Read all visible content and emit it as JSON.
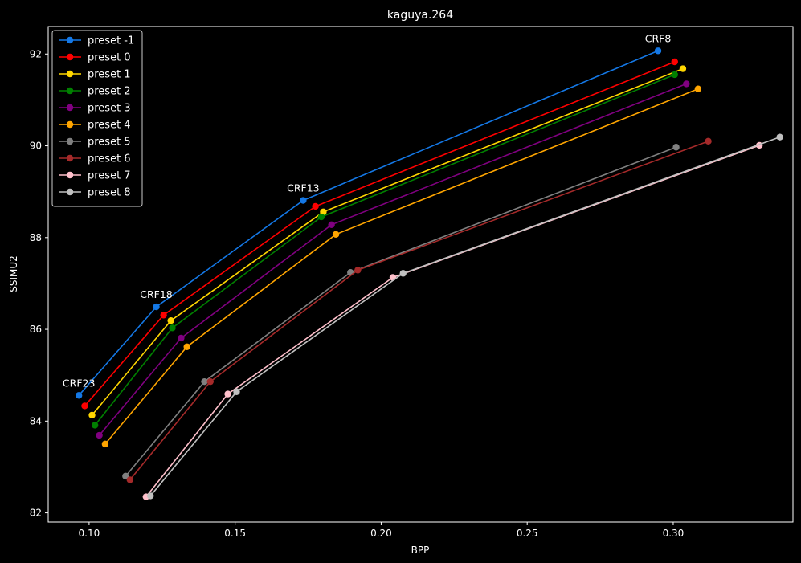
{
  "chart_data": {
    "type": "line",
    "title": "kaguya.264",
    "xlabel": "BPP",
    "ylabel": "SSIMU2",
    "xlim": [
      0.086,
      0.341
    ],
    "ylim": [
      81.8,
      92.6
    ],
    "xticks": [
      0.1,
      0.15,
      0.2,
      0.25,
      0.3
    ],
    "xtick_labels": [
      "0.10",
      "0.15",
      "0.20",
      "0.25",
      "0.30"
    ],
    "yticks": [
      82,
      84,
      86,
      88,
      90,
      92
    ],
    "ytick_labels": [
      "82",
      "84",
      "86",
      "88",
      "90",
      "92"
    ],
    "grid": false,
    "legend_position": "upper-left",
    "series": [
      {
        "name": "preset -1",
        "color": "#1478e6",
        "x": [
          0.0965,
          0.123,
          0.1733,
          0.2948
        ],
        "y": [
          84.56,
          86.49,
          88.81,
          92.07
        ]
      },
      {
        "name": "preset 0",
        "color": "#ff0000",
        "x": [
          0.0985,
          0.1255,
          0.1775,
          0.3005
        ],
        "y": [
          84.33,
          86.31,
          88.68,
          91.83
        ]
      },
      {
        "name": "preset 1",
        "color": "#ffd700",
        "x": [
          0.101,
          0.128,
          0.1802,
          0.3033
        ],
        "y": [
          84.13,
          86.19,
          88.56,
          91.68
        ]
      },
      {
        "name": "preset 2",
        "color": "#008000",
        "x": [
          0.102,
          0.1285,
          0.1795,
          0.3005
        ],
        "y": [
          83.91,
          86.03,
          88.45,
          91.55
        ]
      },
      {
        "name": "preset 3",
        "color": "#800080",
        "x": [
          0.1035,
          0.1315,
          0.183,
          0.3045
        ],
        "y": [
          83.69,
          85.81,
          88.28,
          91.35
        ]
      },
      {
        "name": "preset 4",
        "color": "#ffa500",
        "x": [
          0.1055,
          0.1335,
          0.1845,
          0.3085
        ],
        "y": [
          83.5,
          85.62,
          88.07,
          91.24
        ]
      },
      {
        "name": "preset 5",
        "color": "#808080",
        "x": [
          0.1125,
          0.1395,
          0.1895,
          0.301
        ],
        "y": [
          82.8,
          84.86,
          87.24,
          89.97
        ]
      },
      {
        "name": "preset 6",
        "color": "#a52a2a",
        "x": [
          0.114,
          0.1415,
          0.192,
          0.312
        ],
        "y": [
          82.72,
          84.86,
          87.29,
          90.1
        ]
      },
      {
        "name": "preset 7",
        "color": "#ffc0cb",
        "x": [
          0.1195,
          0.1475,
          0.204,
          0.3295
        ],
        "y": [
          82.35,
          84.59,
          87.13,
          90.01
        ]
      },
      {
        "name": "preset 8",
        "color": "#c0c0c0",
        "x": [
          0.121,
          0.1505,
          0.2075,
          0.3365
        ],
        "y": [
          82.37,
          84.64,
          87.22,
          90.19
        ]
      }
    ],
    "annotations": [
      {
        "text": "CRF8",
        "x": 0.2948,
        "y": 92.07
      },
      {
        "text": "CRF13",
        "x": 0.1733,
        "y": 88.81
      },
      {
        "text": "CRF18",
        "x": 0.123,
        "y": 86.49
      },
      {
        "text": "CRF23",
        "x": 0.0965,
        "y": 84.56
      }
    ]
  }
}
